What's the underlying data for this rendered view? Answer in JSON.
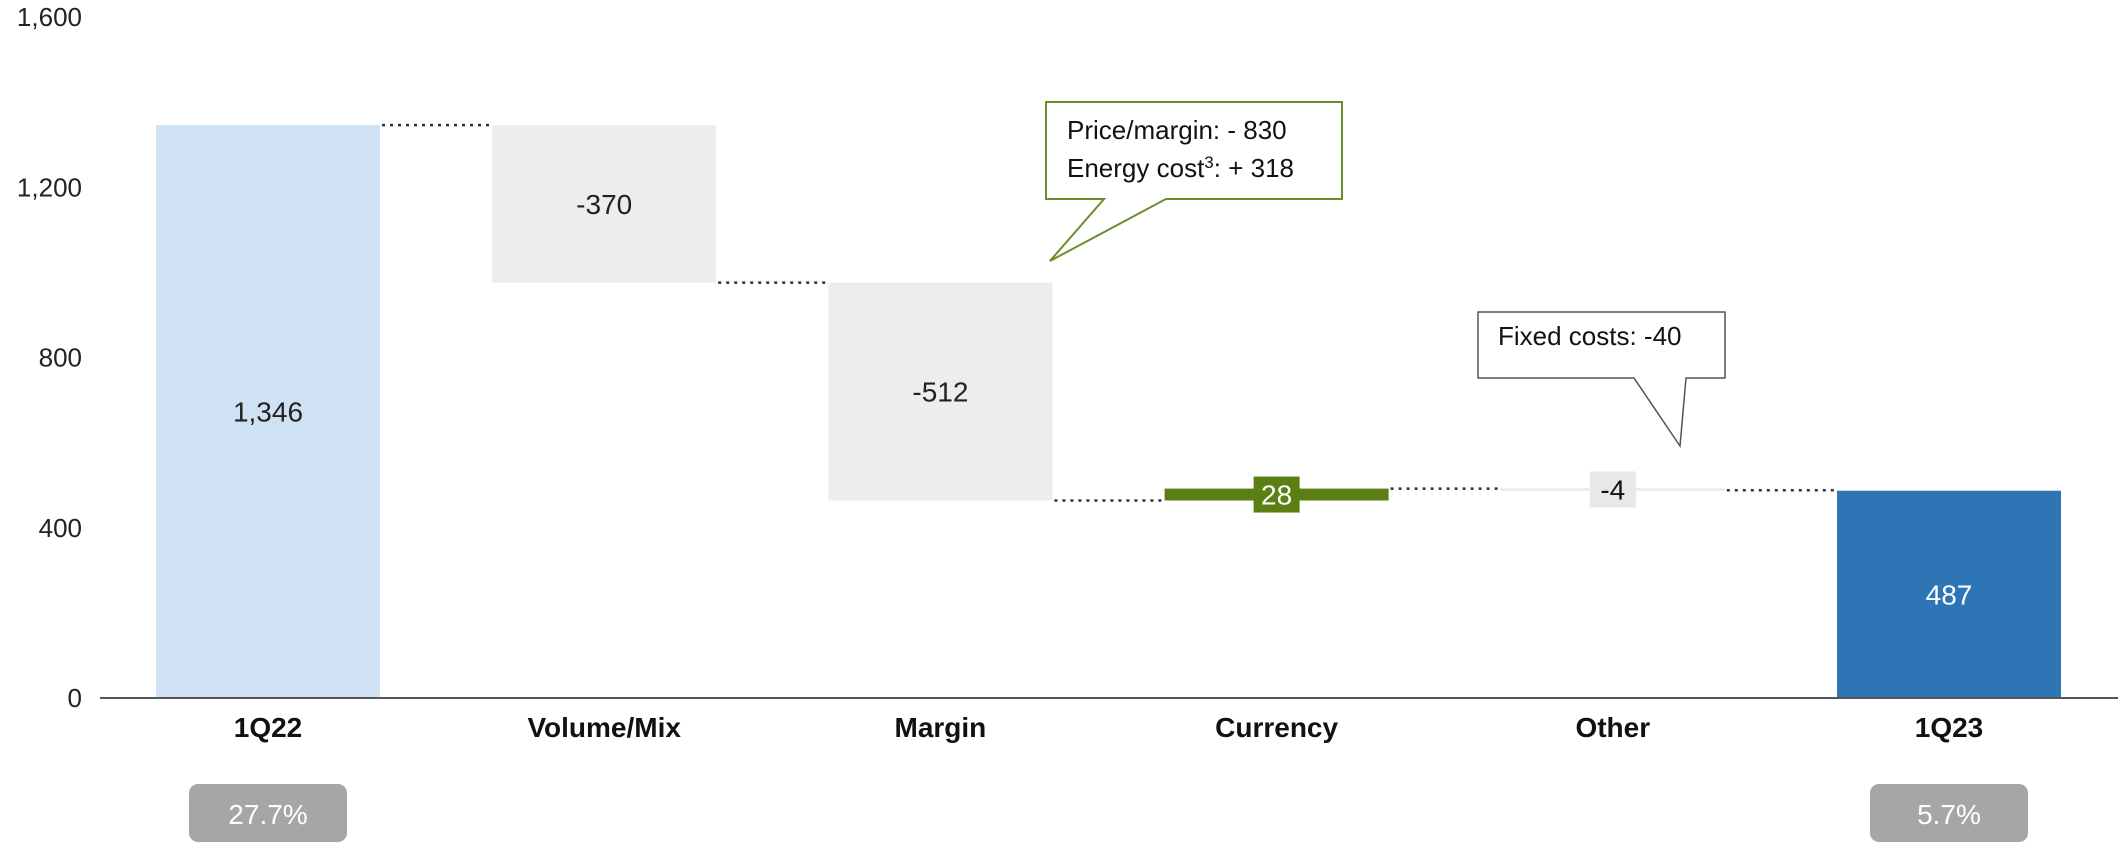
{
  "chart_data": {
    "type": "waterfall",
    "ylim": [
      0,
      1600
    ],
    "yticks": [
      0,
      400,
      800,
      1200,
      1600
    ],
    "ytick_labels": [
      "0",
      "400",
      "800",
      "1,200",
      "1,600"
    ],
    "categories": [
      "1Q22",
      "Volume/Mix",
      "Margin",
      "Currency",
      "Other",
      "1Q23"
    ],
    "values": [
      1346,
      -370,
      -512,
      28,
      -4,
      487
    ],
    "kinds": [
      "total",
      "delta",
      "delta",
      "delta",
      "delta",
      "total"
    ],
    "value_labels": [
      "1,346",
      "-370",
      "-512",
      "28",
      "-4",
      "487"
    ],
    "badges": [
      {
        "category": "1Q22",
        "text": "27.7%"
      },
      {
        "category": "1Q23",
        "text": "5.7%"
      }
    ],
    "annotations": [
      {
        "category": "Margin",
        "lines": [
          "Price/margin: - 830",
          "Energy cost",
          ": + 318"
        ],
        "superscript": "3"
      },
      {
        "category": "Other",
        "lines": [
          "Fixed costs: -40"
        ]
      }
    ],
    "colors": {
      "start_total": "#cfe2f3",
      "end_total": "#2e75b6",
      "negative": "#ededed",
      "positive": "#5b7f13",
      "callout_green_border": "#6a8f2a",
      "badge": "#a6a6a6",
      "axis": "#555555"
    }
  }
}
